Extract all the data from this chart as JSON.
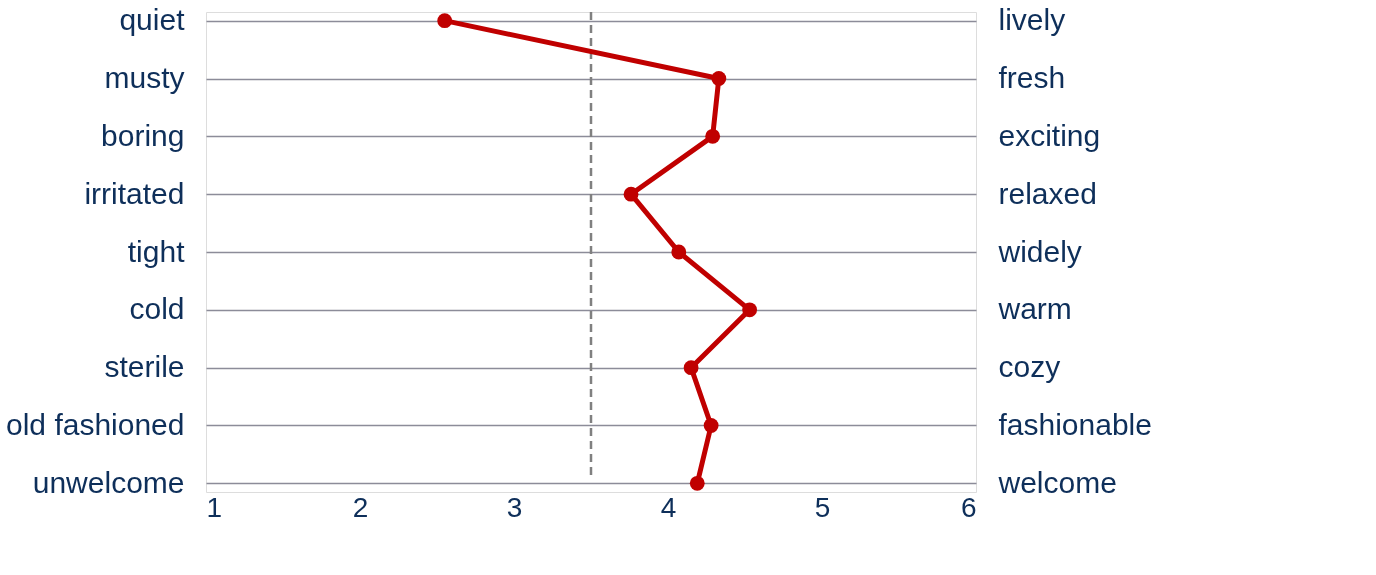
{
  "chart_data": {
    "type": "line",
    "orientation": "horizontal",
    "categories": [
      "quiet",
      "musty",
      "boring",
      "irritated",
      "tight",
      "cold",
      "sterile",
      "old fashioned",
      "unwelcome"
    ],
    "y2_categories": [
      "lively",
      "fresh",
      "exciting",
      "relaxed",
      "widely",
      "warm",
      "cozy",
      "fashionable",
      "welcome"
    ],
    "series": [
      {
        "color": "#c00000",
        "values": [
          2.55,
          4.33,
          4.29,
          3.76,
          4.07,
          4.53,
          4.15,
          4.28,
          4.19
        ]
      }
    ],
    "xlim": [
      1,
      6
    ],
    "xticks": [
      1,
      2,
      3,
      4,
      5,
      6
    ],
    "grid": "y",
    "marker": "circle",
    "line_style": "solid",
    "ref_lines": [
      {
        "axis": "x",
        "value": 3.5,
        "color": "#808080",
        "line_style": "dashed"
      }
    ]
  }
}
